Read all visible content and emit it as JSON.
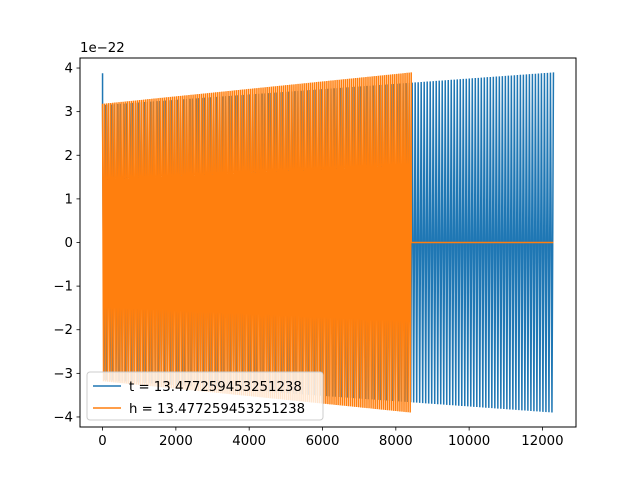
{
  "chart_data": {
    "type": "line",
    "title": "",
    "xlabel": "",
    "ylabel": "",
    "xlim": [
      -615,
      12915
    ],
    "ylim": [
      -4.23e-22,
      4.23e-22
    ],
    "y_offset_label": "1e−22",
    "x_ticks": [
      0,
      2000,
      4000,
      6000,
      8000,
      10000,
      12000
    ],
    "x_tick_labels": [
      "0",
      "2000",
      "4000",
      "6000",
      "8000",
      "10000",
      "12000"
    ],
    "y_ticks": [
      -4,
      -3,
      -2,
      -1,
      0,
      1,
      2,
      3,
      4
    ],
    "y_tick_labels": [
      "−4",
      "−3",
      "−2",
      "−1",
      "0",
      "1",
      "2",
      "3",
      "4"
    ],
    "grid": false,
    "legend_position": "lower-left",
    "series": [
      {
        "name": "t = 13.477259453251238",
        "color": "#1f77b4",
        "x_start": 0,
        "x_end": 12300,
        "initial_spike": 3.88e-22,
        "amplitude_start": 3.15e-22,
        "amplitude_end": 3.9e-22,
        "cycles": 150
      },
      {
        "name": "h = 13.477259453251238",
        "color": "#ff7f0e",
        "x_start": 0,
        "x_end": 8420,
        "amplitude_start": 3.18e-22,
        "amplitude_end": 3.9e-22,
        "cycles": 150,
        "tail_x_end": 12300,
        "tail_value": 0
      }
    ]
  }
}
